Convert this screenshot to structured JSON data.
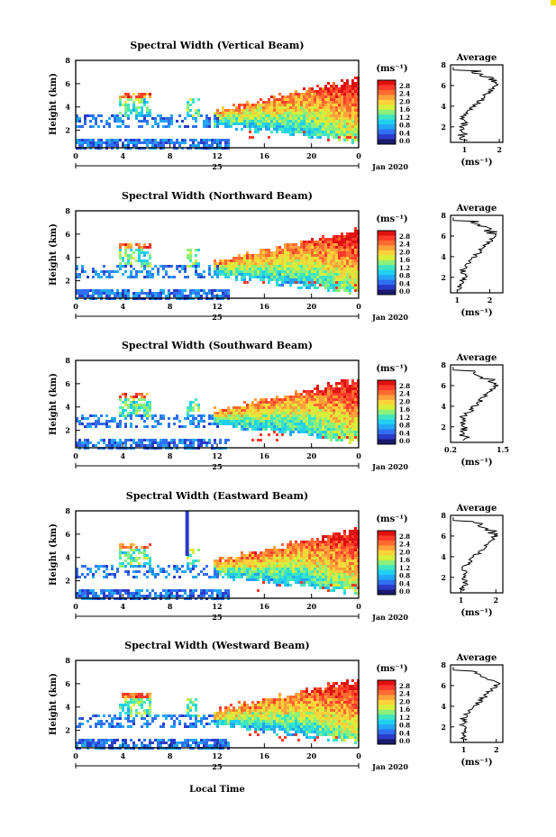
{
  "figure": {
    "xlabel": "Local Time",
    "date_label": "Jan 2020",
    "day_label": "25",
    "xticks": [
      "0",
      "4",
      "8",
      "12",
      "16",
      "20",
      "0"
    ],
    "ylabel": "Height (km)",
    "yticks": [
      "2",
      "4",
      "6",
      "8"
    ],
    "colorbar_unit": "(ms⁻¹)",
    "average_title": "Average",
    "average_unit": "(ms⁻¹)",
    "colormap": [
      "#1a1a6e",
      "#2b3bc9",
      "#2f6ff0",
      "#22a6f5",
      "#20d0f0",
      "#3fe6c0",
      "#8cf07a",
      "#d8ef3a",
      "#ffd23a",
      "#ffa03a",
      "#ff6a30",
      "#ff3a2a",
      "#e01010"
    ]
  },
  "chart_data": [
    {
      "type": "heatmap",
      "title": "Spectral Width (Vertical Beam)",
      "colorbar_ticks": [
        "2.8",
        "2.4",
        "2.0",
        "1.6",
        "1.2",
        "0.8",
        "0.4",
        "0.0"
      ],
      "clim": [
        0.0,
        3.0
      ],
      "average": {
        "xticks": [
          "1",
          "2"
        ],
        "xlim": [
          0.6,
          2.1
        ],
        "ylim": [
          0.5,
          8
        ]
      }
    },
    {
      "type": "heatmap",
      "title": "Spectral Width (Northward Beam)",
      "colorbar_ticks": [
        "2.8",
        "2.4",
        "2.0",
        "1.6",
        "1.2",
        "0.8",
        "0.4",
        "0.0"
      ],
      "clim": [
        0.0,
        3.0
      ],
      "average": {
        "xticks": [
          "1",
          "2"
        ],
        "xlim": [
          0.8,
          2.4
        ],
        "ylim": [
          0.5,
          8
        ]
      }
    },
    {
      "type": "heatmap",
      "title": "Spectral Width (Southward Beam)",
      "colorbar_ticks": [
        "2.8",
        "2.4",
        "2.0",
        "1.6",
        "1.2",
        "0.8",
        "0.4",
        "0.0"
      ],
      "clim": [
        0.0,
        3.0
      ],
      "average": {
        "xticks": [
          "0.2",
          "1.5"
        ],
        "xlim": [
          0.2,
          1.5
        ],
        "ylim": [
          0.5,
          8
        ]
      }
    },
    {
      "type": "heatmap",
      "title": "Spectral Width (Eastward Beam)",
      "colorbar_ticks": [
        "2.8",
        "2.4",
        "2.0",
        "1.6",
        "1.2",
        "0.8",
        "0.4",
        "0.0"
      ],
      "clim": [
        0.0,
        3.0
      ],
      "average": {
        "xticks": [
          "1",
          "2"
        ],
        "xlim": [
          0.7,
          2.2
        ],
        "ylim": [
          0.5,
          8
        ]
      }
    },
    {
      "type": "heatmap",
      "title": "Spectral Width (Westward Beam)",
      "colorbar_ticks": [
        "2.8",
        "2.4",
        "2.0",
        "1.6",
        "1.2",
        "0.8",
        "0.4",
        "0.0"
      ],
      "clim": [
        0.0,
        3.0
      ],
      "average": {
        "xticks": [
          "1",
          "2"
        ],
        "xlim": [
          0.6,
          2.2
        ],
        "ylim": [
          0.5,
          8
        ]
      }
    }
  ]
}
